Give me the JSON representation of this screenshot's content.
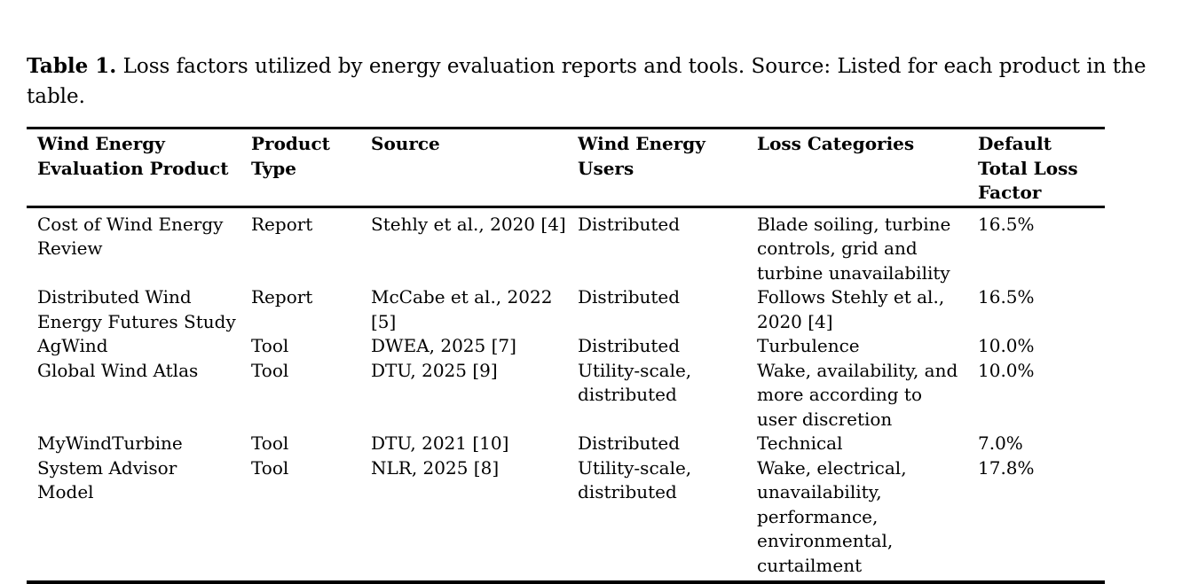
{
  "caption": {
    "label": "Table 1.",
    "text": " Loss factors utilized by energy evaluation reports and tools. Source: Listed for each product in the\ntable."
  },
  "table": {
    "columns": [
      "Wind Energy\nEvaluation Product",
      "Product\nType",
      "Source",
      "Wind Energy\nUsers",
      "Loss Categories",
      "Default\nTotal Loss\nFactor"
    ],
    "rows": [
      {
        "product": "Cost of Wind Energy\nReview",
        "type": "Report",
        "source": "Stehly et al., 2020 [4]",
        "users": "Distributed",
        "losses": "Blade soiling, turbine\ncontrols, grid and\nturbine unavailability",
        "factor": "16.5%"
      },
      {
        "product": "Distributed Wind\nEnergy Futures Study",
        "type": "Report",
        "source": "McCabe et al., 2022\n[5]",
        "users": "Distributed",
        "losses": "Follows Stehly et al.,\n2020 [4]",
        "factor": "16.5%"
      },
      {
        "product": "AgWind",
        "type": "Tool",
        "source": "DWEA, 2025 [7]",
        "users": "Distributed",
        "losses": "Turbulence",
        "factor": "10.0%"
      },
      {
        "product": "Global Wind Atlas",
        "type": "Tool",
        "source": "DTU, 2025 [9]",
        "users": "Utility-scale,\ndistributed",
        "losses": "Wake, availability, and\nmore according to\nuser discretion",
        "factor": "10.0%"
      },
      {
        "product": "MyWindTurbine",
        "type": "Tool",
        "source": "DTU, 2021 [10]",
        "users": "Distributed",
        "losses": "Technical",
        "factor": "7.0%"
      },
      {
        "product": "System Advisor\nModel",
        "type": "Tool",
        "source": "NLR, 2025 [8]",
        "users": "Utility-scale,\ndistributed",
        "losses": "Wake, electrical,\nunavailability,\nperformance,\nenvironmental,\ncurtailment",
        "factor": "17.8%"
      }
    ]
  },
  "colors": {
    "text": "#000000",
    "background": "#ffffff",
    "rule": "#000000"
  }
}
